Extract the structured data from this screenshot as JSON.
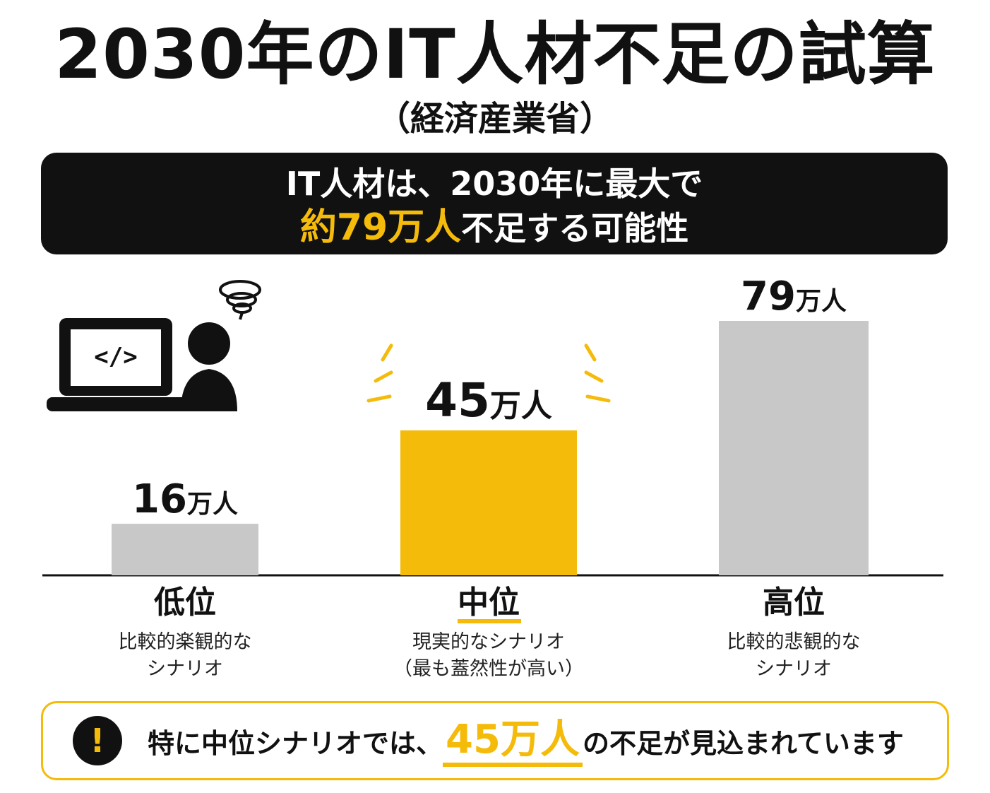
{
  "title": "2030年のIT人材不足の試算",
  "subtitle": "（経済産業省）",
  "banner": {
    "line1": "IT人材は、2030年に最大で",
    "highlight": "約79万人",
    "line2_rest": "不足する可能性"
  },
  "illustration": {
    "code_symbol": "</>"
  },
  "chart_data": {
    "type": "bar",
    "title": "2030年のIT人材不足の試算",
    "categories": [
      "低位",
      "中位",
      "高位"
    ],
    "values": [
      16,
      45,
      79
    ],
    "value_labels": [
      "16",
      "45",
      "79"
    ],
    "unit_label": "万人",
    "descriptions": [
      [
        "比較的楽観的な",
        "シナリオ"
      ],
      [
        "現実的なシナリオ",
        "（最も蓋然性が高い）"
      ],
      [
        "比較的悲観的な",
        "シナリオ"
      ]
    ],
    "highlight_index": 1,
    "ylim": [
      0,
      79
    ],
    "colors": {
      "normal": "#c8c8c8",
      "highlight": "#f5bb0b",
      "axis": "#111111"
    }
  },
  "note": {
    "icon": "!",
    "prefix": "特に中位シナリオでは、",
    "highlight": "45万人",
    "suffix": "の不足が見込まれています"
  },
  "colors": {
    "accent": "#f5bb0b",
    "dark": "#111111"
  }
}
